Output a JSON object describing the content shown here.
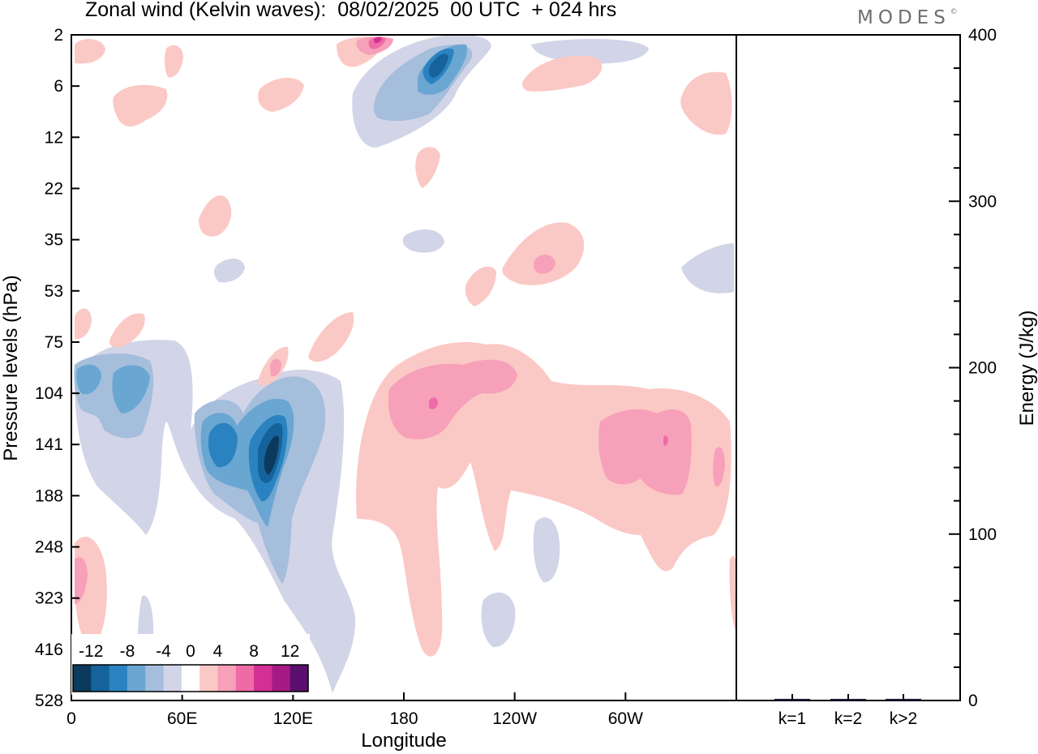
{
  "header": {
    "title": "Zonal wind (Kelvin waves):  08/02/2025  00 UTC  + 024 hrs",
    "logo": "MODES",
    "logo_mark": "©"
  },
  "chart_data": [
    {
      "type": "heatmap",
      "title": "Zonal wind (Kelvin waves):  08/02/2025  00 UTC  + 024 hrs",
      "xlabel": "Longitude",
      "ylabel": "Pressure levels (hPa)",
      "x_ticks": [
        "0",
        "60E",
        "120E",
        "180",
        "120W",
        "60W"
      ],
      "x_tick_degrees": [
        0,
        60,
        120,
        180,
        240,
        300
      ],
      "x_range_degrees": [
        0,
        360
      ],
      "y_ticks": [
        "2",
        "6",
        "12",
        "22",
        "35",
        "53",
        "75",
        "104",
        "141",
        "188",
        "248",
        "323",
        "416",
        "528"
      ],
      "y_scale": "levels, pressure increasing downward",
      "colorbar": {
        "labels": [
          "-12",
          "-8",
          "-4",
          "0",
          "4",
          "8",
          "12"
        ],
        "levels": [
          -14,
          -12,
          -10,
          -8,
          -6,
          -4,
          -2,
          2,
          4,
          6,
          8,
          10,
          12,
          14
        ],
        "colors": [
          "#0b3a5c",
          "#15639a",
          "#2a83c0",
          "#6aa6d2",
          "#a4bedc",
          "#d2d4e7",
          "#ffffff",
          "#fbc9c5",
          "#f7a0ba",
          "#ee6ba5",
          "#d42f95",
          "#a61a84",
          "#5b0f6e"
        ],
        "placement": "bottom-left inside plot"
      },
      "features": [
        {
          "sign": "negative",
          "peak": -13,
          "lon": 107,
          "level": "141",
          "description": "strongest easterly core"
        },
        {
          "sign": "negative",
          "peak": -10,
          "lon": 78,
          "level": "141"
        },
        {
          "sign": "negative",
          "peak": -8,
          "lon": 30,
          "level": "104"
        },
        {
          "sign": "negative",
          "peak": -9,
          "lon": 190,
          "level": "6"
        },
        {
          "sign": "positive",
          "peak": 8,
          "lon": 192,
          "level": "104"
        },
        {
          "sign": "positive",
          "peak": 7,
          "lon": 330,
          "level": "141"
        },
        {
          "sign": "positive",
          "peak": 8,
          "lon": 165,
          "level": "2"
        }
      ]
    },
    {
      "type": "bar",
      "categories": [
        "k=1",
        "k=2",
        "k>2"
      ],
      "values": [
        1,
        0.5,
        1
      ],
      "ylabel": "Energy (J/kg)",
      "ylim": [
        0,
        400
      ],
      "y_ticks": [
        "0",
        "100",
        "200",
        "300",
        "400"
      ],
      "bar_color": "#1a1a3a"
    }
  ]
}
